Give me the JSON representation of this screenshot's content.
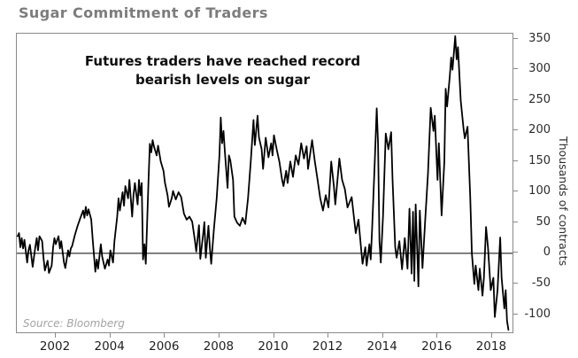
{
  "header": {
    "title": "Sugar Commitment of Traders",
    "title_color": "#7c7c7c"
  },
  "chart_data": {
    "type": "line",
    "title": "Sugar Commitment of Traders",
    "annotation": {
      "line1": "Futures traders have reached record",
      "line2": "bearish levels on sugar"
    },
    "source": "Source: Bloomberg",
    "xlabel": "",
    "ylabel": "Thousands of contracts",
    "grid": false,
    "legend": "none",
    "line_color": "#000000",
    "frame_color": "#8a8a8a",
    "zero_line_color": "#000000",
    "x_ticks": [
      2002,
      2004,
      2006,
      2008,
      2010,
      2012,
      2014,
      2016,
      2018
    ],
    "y_ticks": [
      350,
      300,
      250,
      200,
      150,
      100,
      50,
      0,
      -50,
      -100
    ],
    "x_range": [
      2000.57,
      2018.75
    ],
    "y_range": [
      -129,
      359
    ],
    "zero_line": 0,
    "series": [
      {
        "x": [
          2000.6,
          2000.65,
          2000.7,
          2000.75,
          2000.8,
          2000.85,
          2000.95,
          2001.0,
          2001.05,
          2001.15,
          2001.25,
          2001.3,
          2001.35,
          2001.4,
          2001.5,
          2001.55,
          2001.6,
          2001.7,
          2001.75,
          2001.85,
          2001.9,
          2001.95,
          2002.0,
          2002.1,
          2002.15,
          2002.2,
          2002.3,
          2002.35,
          2002.45,
          2002.5,
          2002.55,
          2002.6,
          2002.7,
          2002.8,
          2002.9,
          2003.0,
          2003.05,
          2003.1,
          2003.15,
          2003.2,
          2003.3,
          2003.35,
          2003.45,
          2003.5,
          2003.55,
          2003.65,
          2003.7,
          2003.8,
          2003.9,
          2003.95,
          2004.0,
          2004.1,
          2004.15,
          2004.25,
          2004.3,
          2004.35,
          2004.45,
          2004.5,
          2004.55,
          2004.65,
          2004.7,
          2004.8,
          2004.85,
          2004.9,
          2005.0,
          2005.05,
          2005.1,
          2005.15,
          2005.2,
          2005.25,
          2005.3,
          2005.4,
          2005.45,
          2005.5,
          2005.55,
          2005.6,
          2005.7,
          2005.75,
          2005.85,
          2005.95,
          2006.0,
          2006.1,
          2006.15,
          2006.25,
          2006.3,
          2006.4,
          2006.5,
          2006.6,
          2006.7,
          2006.8,
          2006.9,
          2007.0,
          2007.1,
          2007.15,
          2007.25,
          2007.3,
          2007.4,
          2007.45,
          2007.5,
          2007.6,
          2007.65,
          2007.7,
          2007.8,
          2007.9,
          2008.0,
          2008.05,
          2008.1,
          2008.15,
          2008.2,
          2008.3,
          2008.35,
          2008.4,
          2008.5,
          2008.55,
          2008.65,
          2008.75,
          2008.85,
          2008.95,
          2009.05,
          2009.15,
          2009.25,
          2009.3,
          2009.4,
          2009.45,
          2009.55,
          2009.6,
          2009.7,
          2009.8,
          2009.9,
          2009.95,
          2010.0,
          2010.1,
          2010.2,
          2010.3,
          2010.35,
          2010.45,
          2010.5,
          2010.6,
          2010.7,
          2010.8,
          2010.9,
          2011.0,
          2011.1,
          2011.2,
          2011.25,
          2011.4,
          2011.5,
          2011.6,
          2011.7,
          2011.8,
          2011.9,
          2012.0,
          2012.1,
          2012.2,
          2012.25,
          2012.4,
          2012.5,
          2012.6,
          2012.7,
          2012.85,
          2013.0,
          2013.1,
          2013.2,
          2013.25,
          2013.35,
          2013.4,
          2013.5,
          2013.55,
          2013.6,
          2013.7,
          2013.77,
          2013.82,
          2013.87,
          2013.92,
          2014.0,
          2014.1,
          2014.2,
          2014.3,
          2014.35,
          2014.45,
          2014.5,
          2014.6,
          2014.7,
          2014.8,
          2014.9,
          2014.97,
          2015.05,
          2015.1,
          2015.15,
          2015.2,
          2015.3,
          2015.35,
          2015.45,
          2015.55,
          2015.65,
          2015.75,
          2015.85,
          2015.9,
          2016.0,
          2016.05,
          2016.15,
          2016.25,
          2016.3,
          2016.35,
          2016.45,
          2016.5,
          2016.55,
          2016.65,
          2016.7,
          2016.75,
          2016.85,
          2016.95,
          2017.0,
          2017.1,
          2017.2,
          2017.26,
          2017.35,
          2017.4,
          2017.5,
          2017.55,
          2017.65,
          2017.7,
          2017.78,
          2017.85,
          2017.95,
          2018.05,
          2018.1,
          2018.2,
          2018.3,
          2018.35,
          2018.45,
          2018.5,
          2018.55,
          2018.6
        ],
        "y": [
          28,
          33,
          10,
          25,
          8,
          22,
          -15,
          5,
          14,
          -22,
          10,
          25,
          5,
          28,
          20,
          -8,
          -28,
          -12,
          -32,
          -20,
          10,
          25,
          15,
          28,
          8,
          20,
          -15,
          -24,
          5,
          -5,
          8,
          12,
          30,
          45,
          58,
          70,
          58,
          76,
          62,
          72,
          55,
          25,
          -30,
          -10,
          -25,
          15,
          -5,
          -25,
          -10,
          -20,
          5,
          -15,
          20,
          60,
          90,
          70,
          100,
          78,
          110,
          90,
          120,
          60,
          95,
          115,
          80,
          120,
          95,
          115,
          -10,
          15,
          -17,
          120,
          179,
          165,
          185,
          175,
          160,
          176,
          150,
          135,
          116,
          95,
          76,
          90,
          102,
          88,
          100,
          92,
          65,
          55,
          60,
          52,
          22,
          3,
          46,
          -9,
          30,
          51,
          -7,
          45,
          9,
          -17,
          40,
          90,
          160,
          222,
          180,
          200,
          167,
          107,
          160,
          152,
          120,
          60,
          50,
          45,
          58,
          48,
          90,
          150,
          218,
          177,
          225,
          190,
          170,
          138,
          189,
          157,
          180,
          160,
          193,
          170,
          150,
          120,
          110,
          135,
          115,
          150,
          125,
          160,
          145,
          180,
          155,
          175,
          138,
          185,
          150,
          120,
          90,
          70,
          95,
          75,
          150,
          110,
          80,
          155,
          120,
          105,
          75,
          92,
          33,
          55,
          7,
          -17,
          10,
          -20,
          15,
          -10,
          40,
          150,
          237,
          180,
          20,
          -15,
          60,
          196,
          170,
          198,
          120,
          10,
          -7,
          20,
          -26,
          25,
          -25,
          73,
          -33,
          68,
          -45,
          80,
          -54,
          70,
          -24,
          55,
          130,
          238,
          200,
          225,
          120,
          180,
          62,
          150,
          269,
          240,
          290,
          320,
          300,
          355,
          317,
          337,
          250,
          205,
          188,
          207,
          90,
          0,
          -50,
          -20,
          -60,
          -25,
          -69,
          -40,
          43,
          10,
          -60,
          -40,
          -104,
          -60,
          26,
          -40,
          -90,
          -60,
          -110,
          -125
        ]
      }
    ]
  }
}
